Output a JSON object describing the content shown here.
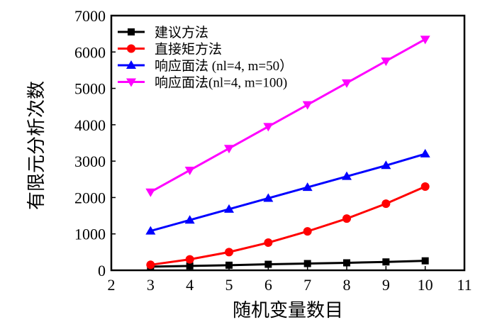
{
  "chart_data": {
    "type": "line",
    "title": "",
    "xlabel": "随机变量数目",
    "ylabel": "有限元分析次数",
    "xlim": [
      2,
      11
    ],
    "ylim": [
      0,
      7000
    ],
    "xticks": [
      "2",
      "3",
      "4",
      "5",
      "6",
      "7",
      "8",
      "9",
      "10",
      "11"
    ],
    "yticks": [
      "0",
      "1000",
      "2000",
      "3000",
      "4000",
      "5000",
      "6000",
      "7000"
    ],
    "x": [
      3,
      4,
      5,
      6,
      7,
      8,
      9,
      10
    ],
    "legend_position": "top-left",
    "series": [
      {
        "name": "建议方法",
        "color": "#000000",
        "marker": "square",
        "values": [
          100,
          120,
          140,
          165,
          185,
          205,
          230,
          260
        ]
      },
      {
        "name": "直接矩方法",
        "color": "#ff0000",
        "marker": "circle",
        "values": [
          150,
          300,
          500,
          760,
          1070,
          1420,
          1830,
          2300
        ]
      },
      {
        "name": "响应面法 (nl=4, m=50）",
        "color": "#0000ff",
        "marker": "triangle-up",
        "values": [
          1080,
          1380,
          1680,
          1980,
          2280,
          2580,
          2880,
          3200
        ]
      },
      {
        "name": "响应面法(nl=4, m=100)",
        "color": "#ff00ff",
        "marker": "triangle-down",
        "values": [
          2150,
          2750,
          3350,
          3950,
          4550,
          5150,
          5750,
          6350
        ]
      }
    ]
  }
}
